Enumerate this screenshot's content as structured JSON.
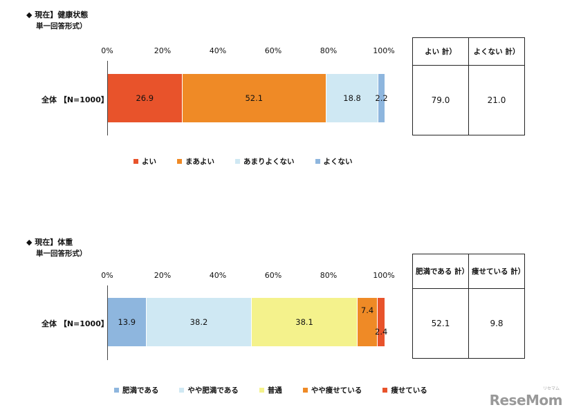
{
  "watermark": {
    "brand": "ReseMom",
    "sub": "リセマム"
  },
  "chart_data": [
    {
      "type": "bar",
      "orientation": "horizontal-stacked-percent",
      "title": "◆ 現在】健康状態",
      "subtitle": "単一回答形式）",
      "xlim": [
        0,
        100
      ],
      "ticks": [
        "0%",
        "20%",
        "40%",
        "60%",
        "80%",
        "100%"
      ],
      "categories": [
        "全体 【N=1000】"
      ],
      "series": [
        {
          "name": "よい",
          "color": "#e8532b",
          "values": [
            26.9
          ],
          "label": "26.9"
        },
        {
          "name": "まあよい",
          "color": "#ef8a26",
          "values": [
            52.1
          ],
          "label": "52.1"
        },
        {
          "name": "あまりよくない",
          "color": "#cfe8f3",
          "values": [
            18.8
          ],
          "label": "18.8"
        },
        {
          "name": "よくない",
          "color": "#8eb6de",
          "values": [
            2.2
          ],
          "label": "2.2"
        }
      ],
      "summary": {
        "headers": [
          "よい 計）",
          "よくない 計）"
        ],
        "values": [
          "79.0",
          "21.0"
        ]
      },
      "legend_position": "bottom"
    },
    {
      "type": "bar",
      "orientation": "horizontal-stacked-percent",
      "title": "◆ 現在】体重",
      "subtitle": "単一回答形式）",
      "xlim": [
        0,
        100
      ],
      "ticks": [
        "0%",
        "20%",
        "40%",
        "60%",
        "80%",
        "100%"
      ],
      "categories": [
        "全体 【N=1000】"
      ],
      "series": [
        {
          "name": "肥満である",
          "color": "#8eb6de",
          "values": [
            13.9
          ],
          "label": "13.9"
        },
        {
          "name": "やや肥満である",
          "color": "#cfe8f3",
          "values": [
            38.2
          ],
          "label": "38.2"
        },
        {
          "name": "普通",
          "color": "#f4f28c",
          "values": [
            38.1
          ],
          "label": "38.1"
        },
        {
          "name": "やや痩せている",
          "color": "#ef8a26",
          "values": [
            7.4
          ],
          "label": "7.4"
        },
        {
          "name": "痩せている",
          "color": "#e8532b",
          "values": [
            2.4
          ],
          "label": "2.4"
        }
      ],
      "summary": {
        "headers": [
          "肥満である 計）",
          "痩せている 計）"
        ],
        "values": [
          "52.1",
          "9.8"
        ]
      },
      "legend_position": "bottom"
    }
  ]
}
